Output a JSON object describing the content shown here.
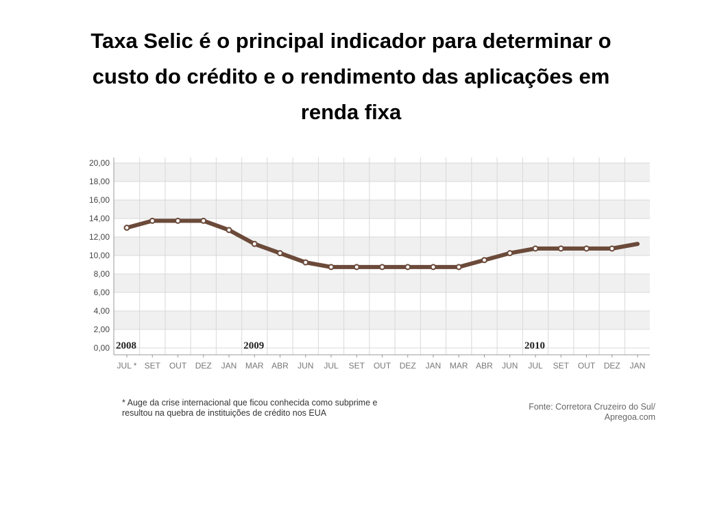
{
  "slide": {
    "title_lines": [
      "Taxa Selic é o principal indicador para determinar o",
      "custo do crédito e o rendimento das aplicações em",
      "renda fixa"
    ]
  },
  "chart_data": {
    "type": "line",
    "categories": [
      "JUL *",
      "SET",
      "OUT",
      "DEZ",
      "JAN",
      "MAR",
      "ABR",
      "JUN",
      "JUL",
      "SET",
      "OUT",
      "DEZ",
      "JAN",
      "MAR",
      "ABR",
      "JUN",
      "JUL",
      "SET",
      "OUT",
      "DEZ",
      "JAN"
    ],
    "series": [
      {
        "values": [
          13.0,
          13.75,
          13.75,
          13.75,
          12.75,
          11.25,
          10.25,
          9.25,
          8.75,
          8.75,
          8.75,
          8.75,
          8.75,
          8.75,
          9.5,
          10.25,
          10.75,
          10.75,
          10.75,
          10.75,
          11.25
        ]
      }
    ],
    "y_ticks": [
      "0,00",
      "2,00",
      "4,00",
      "6,00",
      "8,00",
      "10,00",
      "12,00",
      "14,00",
      "16,00",
      "18,00",
      "20,00"
    ],
    "ylim": [
      0,
      20
    ],
    "year_labels": [
      {
        "text": "2008",
        "category_index": 0
      },
      {
        "text": "2009",
        "category_index": 5
      },
      {
        "text": "2010",
        "category_index": 16
      }
    ],
    "grid": true,
    "line_color": "#6b4a3a",
    "marker_fill": "#ffffff",
    "band_color": "#f0f0f0",
    "grid_color": "#d8d8d8"
  },
  "footnote": {
    "lines": [
      "* Auge da crise internacional que ficou conhecida como subprime e",
      "resultou na quebra de instituições de crédito nos EUA"
    ]
  },
  "source": {
    "lines": [
      "Fonte: Corretora Cruzeiro do Sul/",
      "Apregoa.com"
    ]
  }
}
